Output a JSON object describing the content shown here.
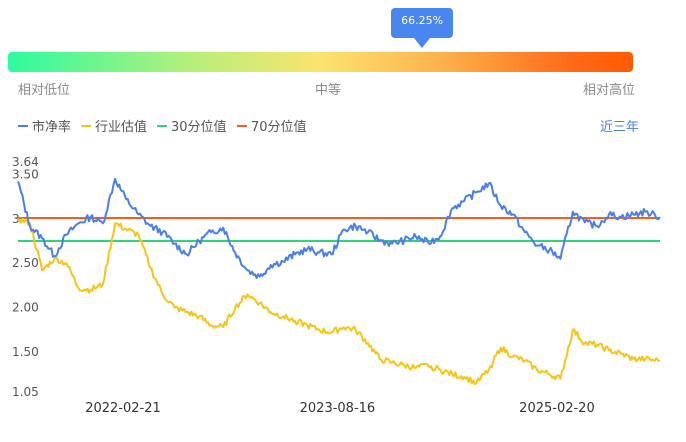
{
  "gauge": {
    "current_percentile": 66.25,
    "current_label": "66.25%",
    "low_label": "相对低位",
    "mid_label": "中等",
    "high_label": "相对高位"
  },
  "legend": {
    "items": [
      {
        "label": "市净率",
        "color": "#4a7fe8"
      },
      {
        "label": "行业估值",
        "color": "#f5c518"
      },
      {
        "label": "30分位值",
        "color": "#2bd67b"
      },
      {
        "label": "70分位值",
        "color": "#ff5a1a"
      }
    ],
    "range_label": "近三年"
  },
  "chart_data": {
    "type": "line",
    "ylim": [
      1.05,
      3.64
    ],
    "y_ticks": [
      "1.05",
      "1.50",
      "2.00",
      "2.50",
      "3",
      "3.50",
      "3.64"
    ],
    "x_ticks": [
      "2022-02-21",
      "2023-08-16",
      "2025-02-20"
    ],
    "x_range": [
      "2021-06-01",
      "2025-11-07"
    ],
    "reference_lines": [
      {
        "name": "30分位值",
        "value": 2.75
      },
      {
        "name": "70分位值",
        "value": 3.01
      }
    ],
    "series": [
      {
        "name": "市净率",
        "x": [
          "2021-06-01",
          "2021-07-01",
          "2021-08-01",
          "2021-09-01",
          "2021-10-01",
          "2021-11-01",
          "2021-12-01",
          "2022-01-01",
          "2022-02-01",
          "2022-03-01",
          "2022-04-01",
          "2022-05-01",
          "2022-06-01",
          "2022-07-01",
          "2022-08-01",
          "2022-09-01",
          "2022-10-01",
          "2022-11-01",
          "2022-12-01",
          "2023-01-01",
          "2023-02-01",
          "2023-03-01",
          "2023-04-01",
          "2023-05-01",
          "2023-06-01",
          "2023-07-01",
          "2023-08-01",
          "2023-09-01",
          "2023-10-01",
          "2023-11-01",
          "2023-12-01",
          "2024-01-01",
          "2024-02-01",
          "2024-03-01",
          "2024-04-01",
          "2024-05-01",
          "2024-06-01",
          "2024-07-01",
          "2024-08-01",
          "2024-09-01",
          "2024-10-01",
          "2024-11-01",
          "2024-12-01",
          "2025-01-01",
          "2025-02-01",
          "2025-03-01",
          "2025-04-01",
          "2025-05-01",
          "2025-06-01",
          "2025-07-01",
          "2025-08-01",
          "2025-09-01",
          "2025-10-01",
          "2025-11-07"
        ],
        "values": [
          3.42,
          2.92,
          2.78,
          2.58,
          2.82,
          2.95,
          3.02,
          2.95,
          3.45,
          3.22,
          3.05,
          2.92,
          2.85,
          2.72,
          2.6,
          2.75,
          2.85,
          2.9,
          2.62,
          2.42,
          2.35,
          2.48,
          2.52,
          2.6,
          2.66,
          2.62,
          2.6,
          2.88,
          2.92,
          2.85,
          2.76,
          2.72,
          2.76,
          2.8,
          2.73,
          2.8,
          3.12,
          3.2,
          3.3,
          3.4,
          3.15,
          3.05,
          2.85,
          2.7,
          2.65,
          2.55,
          3.08,
          2.96,
          2.92,
          3.05,
          3.02,
          3.05,
          3.08,
          3.02
        ]
      },
      {
        "name": "行业估值",
        "x": [
          "2021-06-01",
          "2021-07-01",
          "2021-08-01",
          "2021-09-01",
          "2021-10-01",
          "2021-11-01",
          "2021-12-01",
          "2022-01-01",
          "2022-02-01",
          "2022-03-01",
          "2022-04-01",
          "2022-05-01",
          "2022-06-01",
          "2022-07-01",
          "2022-08-01",
          "2022-09-01",
          "2022-10-01",
          "2022-11-01",
          "2022-12-01",
          "2023-01-01",
          "2023-02-01",
          "2023-03-01",
          "2023-04-01",
          "2023-05-01",
          "2023-06-01",
          "2023-07-01",
          "2023-08-01",
          "2023-09-01",
          "2023-10-01",
          "2023-11-01",
          "2023-12-01",
          "2024-01-01",
          "2024-02-01",
          "2024-03-01",
          "2024-04-01",
          "2024-05-01",
          "2024-06-01",
          "2024-07-01",
          "2024-08-01",
          "2024-09-01",
          "2024-10-01",
          "2024-11-01",
          "2024-12-01",
          "2025-01-01",
          "2025-02-01",
          "2025-03-01",
          "2025-04-01",
          "2025-05-01",
          "2025-06-01",
          "2025-07-01",
          "2025-08-01",
          "2025-09-01",
          "2025-10-01",
          "2025-11-07"
        ],
        "values": [
          3.0,
          2.95,
          2.42,
          2.55,
          2.5,
          2.22,
          2.2,
          2.26,
          2.95,
          2.88,
          2.82,
          2.45,
          2.15,
          2.0,
          1.95,
          1.9,
          1.8,
          1.78,
          2.0,
          2.15,
          2.05,
          1.95,
          1.9,
          1.85,
          1.8,
          1.75,
          1.72,
          1.78,
          1.75,
          1.6,
          1.42,
          1.38,
          1.35,
          1.32,
          1.35,
          1.3,
          1.25,
          1.22,
          1.15,
          1.3,
          1.55,
          1.45,
          1.4,
          1.3,
          1.25,
          1.2,
          1.75,
          1.6,
          1.58,
          1.52,
          1.48,
          1.42,
          1.42,
          1.4
        ]
      }
    ]
  }
}
